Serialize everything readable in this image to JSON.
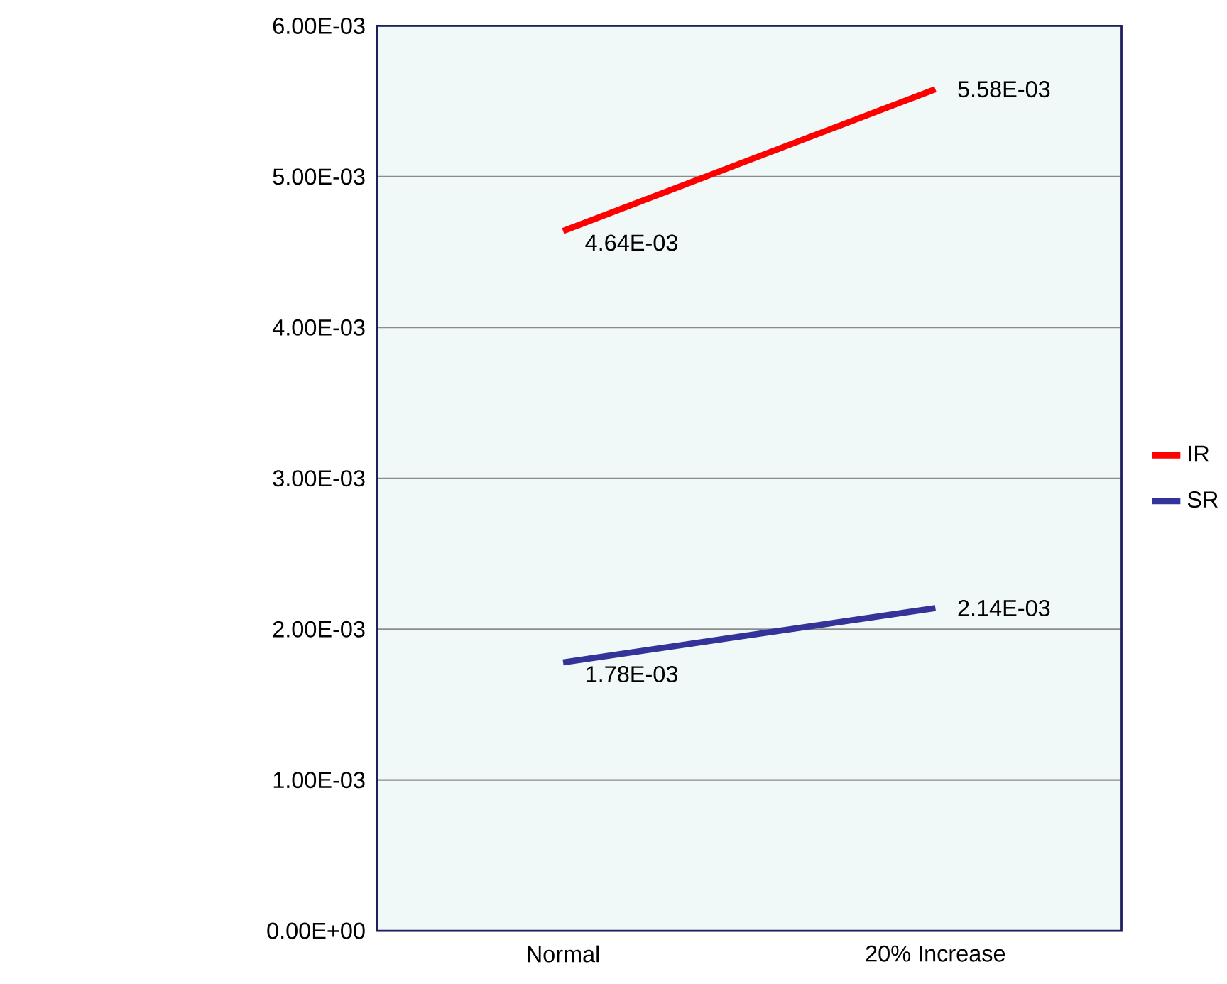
{
  "chart_data": {
    "type": "line",
    "categories": [
      "Normal",
      "20% Increase"
    ],
    "series": [
      {
        "name": "IR",
        "color": "#ff0000",
        "values": [
          0.00464,
          0.00558
        ],
        "value_labels": [
          "4.64E-03",
          "5.58E-03"
        ]
      },
      {
        "name": "SR",
        "color": "#333399",
        "values": [
          0.00178,
          0.00214
        ],
        "value_labels": [
          "1.78E-03",
          "2.14E-03"
        ]
      }
    ],
    "ylim": [
      0,
      0.006
    ],
    "yticks": [
      {
        "value": 0,
        "label": "0.00E+00"
      },
      {
        "value": 0.001,
        "label": "1.00E-03"
      },
      {
        "value": 0.002,
        "label": "2.00E-03"
      },
      {
        "value": 0.003,
        "label": "3.00E-03"
      },
      {
        "value": 0.004,
        "label": "4.00E-03"
      },
      {
        "value": 0.005,
        "label": "5.00E-03"
      },
      {
        "value": 0.006,
        "label": "6.00E-03"
      }
    ],
    "grid": "y",
    "legend": "right",
    "marker": "none",
    "line_style": "solid"
  }
}
